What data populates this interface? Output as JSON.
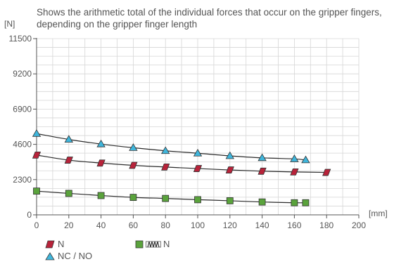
{
  "chart_data": {
    "type": "line",
    "title": "Shows the arithmetic total of the individual forces that occur on the gripper fingers, depending on the gripper finger length",
    "ylabel": "[N]",
    "xlabel": "[mm]",
    "xlim": [
      0,
      200
    ],
    "ylim": [
      0,
      11500
    ],
    "x_ticks": [
      0,
      20,
      40,
      60,
      80,
      100,
      120,
      140,
      160,
      180,
      200
    ],
    "y_ticks": [
      0,
      2300,
      4600,
      6900,
      9200,
      11500
    ],
    "grid": true,
    "legend_position": "bottom",
    "series": [
      {
        "name": "N",
        "marker": "parallelogram",
        "color": "#b8233a",
        "x": [
          0,
          20,
          40,
          60,
          80,
          100,
          120,
          140,
          160,
          180
        ],
        "y": [
          3900,
          3570,
          3380,
          3230,
          3120,
          3020,
          2930,
          2850,
          2800,
          2770
        ]
      },
      {
        "name": "NC / NO",
        "marker": "triangle",
        "color": "#3fb6dc",
        "x": [
          0,
          20,
          40,
          60,
          80,
          100,
          120,
          140,
          160,
          167
        ],
        "y": [
          5300,
          4920,
          4620,
          4380,
          4180,
          4020,
          3850,
          3720,
          3650,
          3580
        ]
      },
      {
        "name": "N",
        "marker": "square",
        "color": "#5aa33c",
        "x": [
          0,
          20,
          40,
          60,
          80,
          100,
          120,
          140,
          160,
          167
        ],
        "y": [
          1550,
          1400,
          1260,
          1140,
          1070,
          990,
          920,
          840,
          790,
          790
        ]
      }
    ]
  }
}
